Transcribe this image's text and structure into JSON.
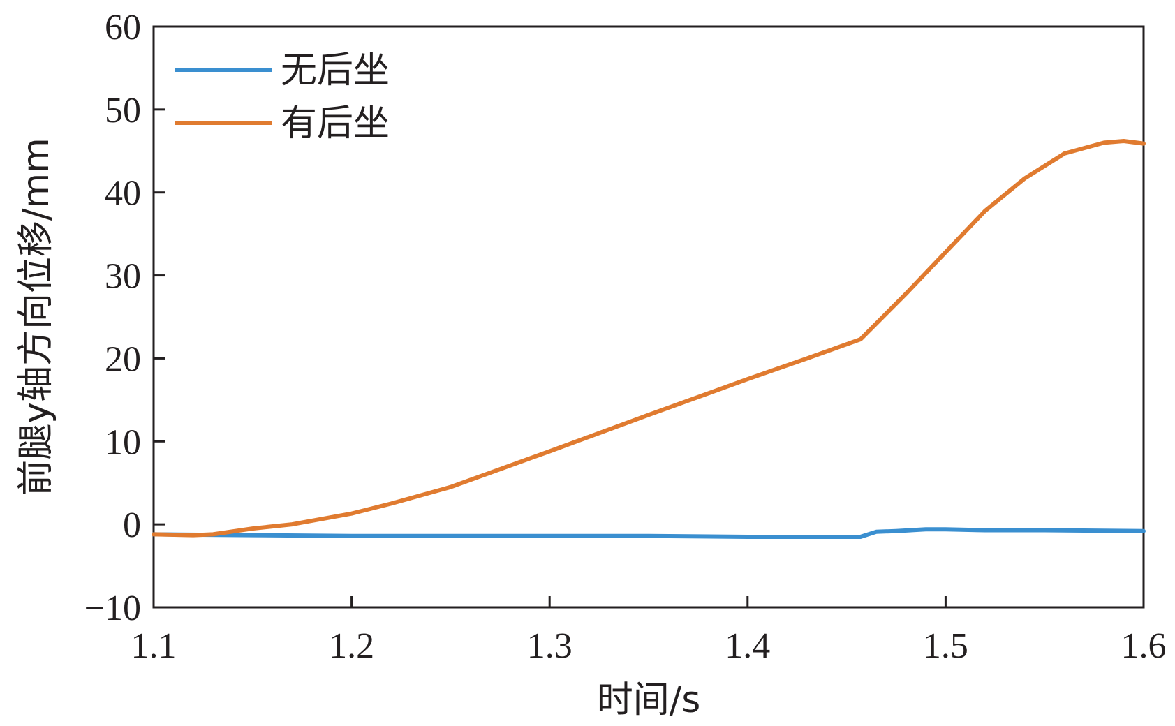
{
  "chart_data": {
    "type": "line",
    "title": "",
    "xlabel": "时间/s",
    "ylabel": "前腿y轴方向位移/mm",
    "xlim": [
      1.1,
      1.6
    ],
    "ylim": [
      -10,
      60
    ],
    "xticks": [
      1.1,
      1.2,
      1.3,
      1.4,
      1.5,
      1.6
    ],
    "yticks": [
      -10,
      0,
      10,
      20,
      30,
      40,
      50,
      60
    ],
    "xtick_labels": [
      "1.1",
      "1.2",
      "1.3",
      "1.4",
      "1.5",
      "1.6"
    ],
    "ytick_labels": [
      "−10",
      "0",
      "10",
      "20",
      "30",
      "40",
      "50",
      "60"
    ],
    "grid": false,
    "legend_position": "top-left",
    "series": [
      {
        "name": "无后坐",
        "color": "#3a8fd0",
        "x": [
          1.1,
          1.15,
          1.2,
          1.25,
          1.3,
          1.35,
          1.4,
          1.45,
          1.457,
          1.465,
          1.475,
          1.49,
          1.5,
          1.52,
          1.55,
          1.6
        ],
        "y": [
          -1.2,
          -1.3,
          -1.4,
          -1.4,
          -1.4,
          -1.4,
          -1.5,
          -1.5,
          -1.5,
          -0.9,
          -0.8,
          -0.6,
          -0.6,
          -0.7,
          -0.7,
          -0.8
        ]
      },
      {
        "name": "有后坐",
        "color": "#e07b30",
        "x": [
          1.1,
          1.12,
          1.13,
          1.15,
          1.17,
          1.2,
          1.22,
          1.25,
          1.3,
          1.35,
          1.4,
          1.43,
          1.457,
          1.465,
          1.48,
          1.5,
          1.52,
          1.54,
          1.56,
          1.58,
          1.59,
          1.6
        ],
        "y": [
          -1.2,
          -1.3,
          -1.2,
          -0.5,
          0.0,
          1.3,
          2.5,
          4.5,
          8.8,
          13.2,
          17.5,
          20.0,
          22.3,
          24.2,
          27.8,
          32.8,
          37.8,
          41.7,
          44.7,
          46.0,
          46.2,
          45.9
        ]
      }
    ]
  }
}
